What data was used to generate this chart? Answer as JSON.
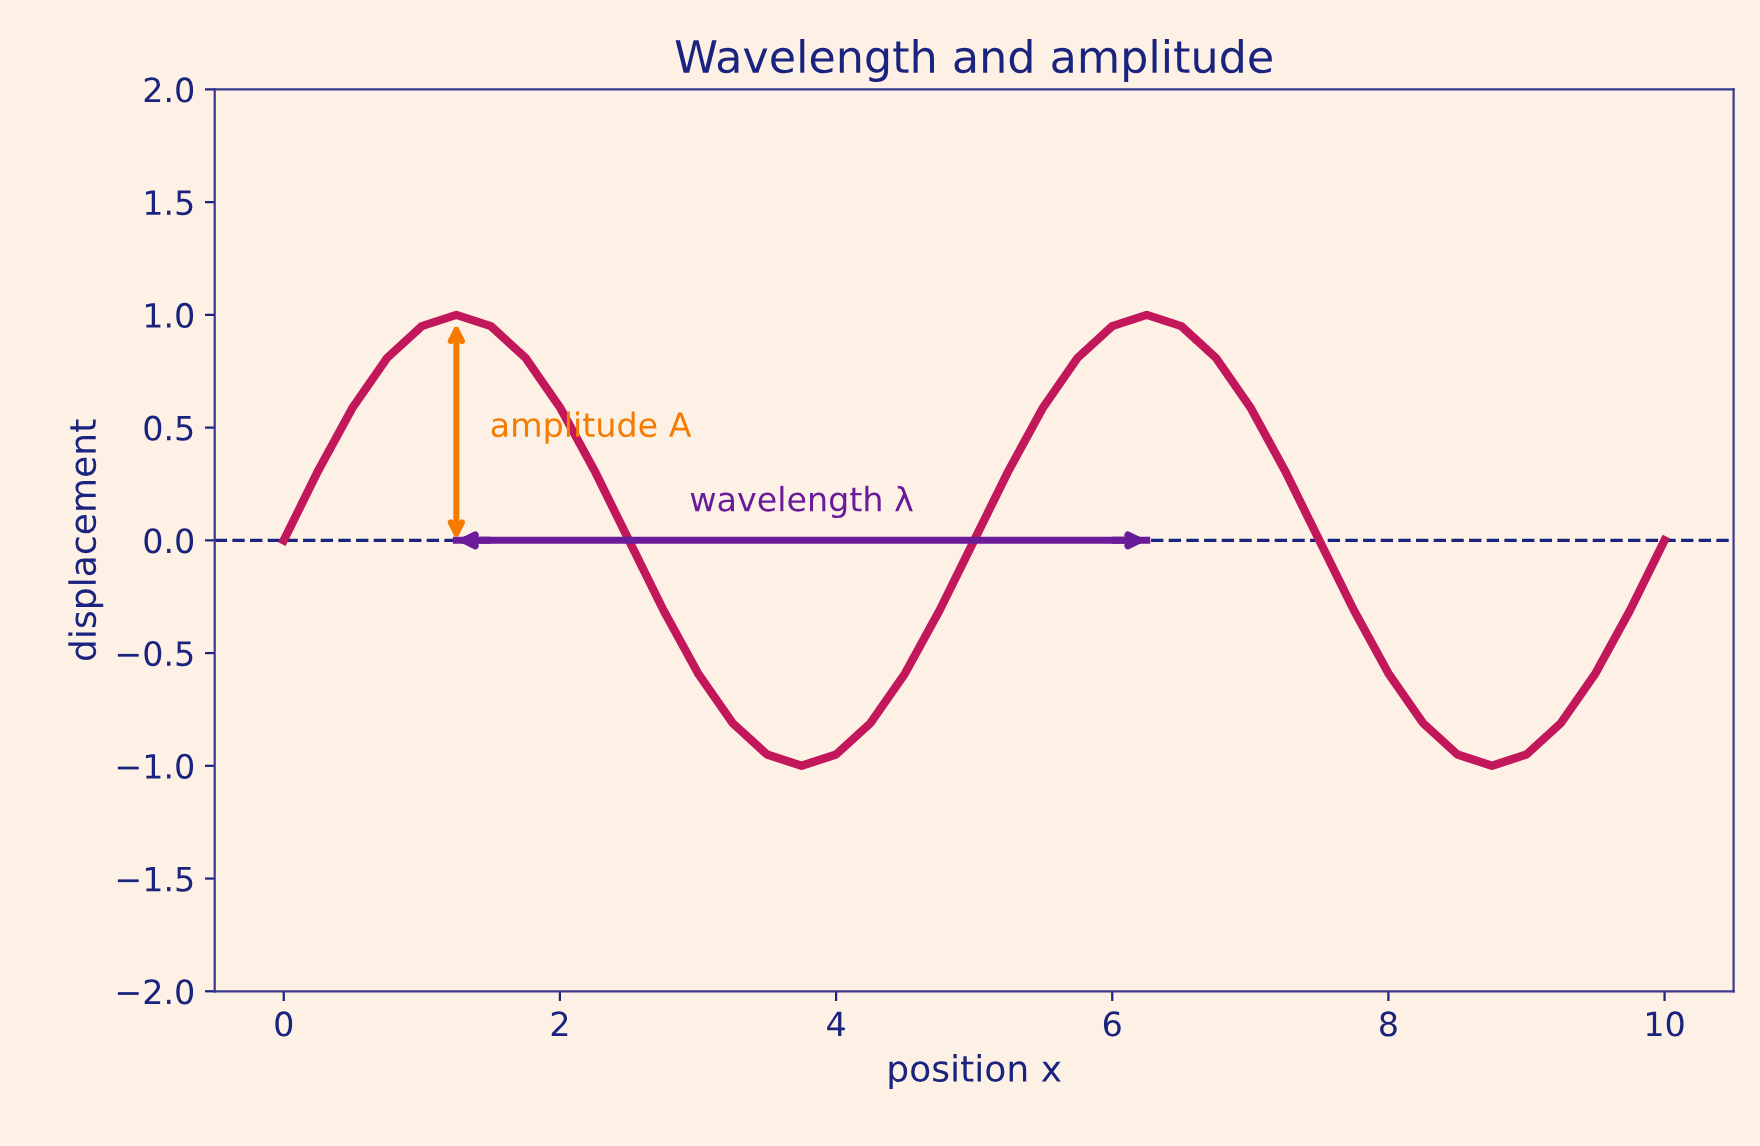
{
  "chart_data": {
    "type": "line",
    "title": "Wavelength and amplitude",
    "xlabel": "position x",
    "ylabel": "displacement",
    "x": [
      0,
      0.25,
      0.5,
      0.75,
      1,
      1.25,
      1.5,
      1.75,
      2,
      2.25,
      2.5,
      2.75,
      3,
      3.25,
      3.5,
      3.75,
      4,
      4.25,
      4.5,
      4.75,
      5,
      5.25,
      5.5,
      5.75,
      6,
      6.25,
      6.5,
      6.75,
      7,
      7.25,
      7.5,
      7.75,
      8,
      8.25,
      8.5,
      8.75,
      9,
      9.25,
      9.5,
      9.75,
      10
    ],
    "series": [
      {
        "color": "#c2185b",
        "values": [
          0,
          0.31,
          0.59,
          0.81,
          0.95,
          1,
          0.95,
          0.81,
          0.59,
          0.31,
          0,
          -0.31,
          -0.59,
          -0.81,
          -0.95,
          -1,
          -0.95,
          -0.81,
          -0.59,
          -0.31,
          0,
          0.31,
          0.59,
          0.81,
          0.95,
          1,
          0.95,
          0.81,
          0.59,
          0.31,
          0,
          -0.31,
          -0.59,
          -0.81,
          -0.95,
          -1,
          -0.95,
          -0.81,
          -0.59,
          -0.31,
          0
        ]
      },
      {
        "type": "line",
        "color": "#6a1b9a",
        "x": [
          1.25,
          6.25
        ],
        "values": [
          0,
          0
        ]
      }
    ],
    "xlim": [
      -0.5,
      10.5
    ],
    "xticks": [
      0,
      2,
      4,
      6,
      8,
      10
    ],
    "ylim": [
      -2,
      2
    ],
    "yticks": [
      {
        "value": -2,
        "label": "−2.0"
      },
      {
        "value": -1.5,
        "label": "−1.5"
      },
      {
        "value": -1,
        "label": "−1.0"
      },
      {
        "value": -0.5,
        "label": "−0.5"
      },
      {
        "value": 0,
        "label": "0.0"
      },
      {
        "value": 0.5,
        "label": "0.5"
      },
      {
        "value": 1,
        "label": "1.0"
      },
      {
        "value": 1.5,
        "label": "1.5"
      },
      {
        "value": 2,
        "label": "2.0"
      }
    ],
    "ref_lines": [
      {
        "axis": "y",
        "value": 0,
        "color": "#1a237e",
        "line_style": "dashed"
      }
    ],
    "annotations": [
      "amplitude A",
      "wavelength λ"
    ],
    "grid": false,
    "marker": "none",
    "line_style": "solid"
  }
}
